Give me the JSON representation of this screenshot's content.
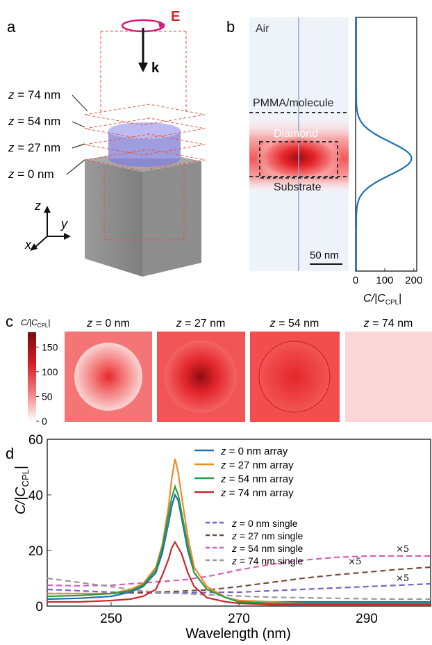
{
  "panel_labels": {
    "a": "a",
    "b": "b",
    "c": "c",
    "d": "d"
  },
  "panel_a": {
    "field_label": "E",
    "wave_label": "k",
    "planes": [
      {
        "prefix": "z",
        "text": " = 74 nm"
      },
      {
        "prefix": "z",
        "text": " = 54 nm"
      },
      {
        "prefix": "z",
        "text": " = 27 nm"
      },
      {
        "prefix": "z",
        "text": " = 0 nm"
      }
    ],
    "axes": {
      "z": "z",
      "y": "y",
      "x": "x"
    }
  },
  "panel_b": {
    "regions": {
      "air": "Air",
      "pmma": "PMMA/molecule",
      "diamond": "Diamond",
      "substrate": "Substrate"
    },
    "scalebar": "50 nm",
    "profile_axis_label": "C/|C",
    "profile_axis_sub": "CPL",
    "profile_axis_end": "|",
    "profile_ticks": [
      "0",
      "100",
      "200"
    ],
    "profile_xlim": [
      0,
      210
    ],
    "profile_peak": 190
  },
  "panel_c": {
    "colorbar_title": "C/|C",
    "colorbar_sub": "CPL",
    "colorbar_end": "|",
    "colorbar_ticks": [
      "150",
      "100",
      "50",
      "0"
    ],
    "maps": [
      {
        "prefix": "z",
        "text": " = 0 nm"
      },
      {
        "prefix": "z",
        "text": " = 27 nm"
      },
      {
        "prefix": "z",
        "text": " = 54 nm"
      },
      {
        "prefix": "z",
        "text": " = 74 nm"
      }
    ]
  },
  "chart_data": {
    "type": "line",
    "xlabel": "Wavelength (nm)",
    "ylabel": "C/|C",
    "ylabel_sub": "CPL",
    "ylabel_end": "|",
    "xlim": [
      240,
      300
    ],
    "ylim": [
      0,
      60
    ],
    "xticks": [
      250,
      270,
      290
    ],
    "yticks": [
      0,
      20,
      40,
      60
    ],
    "x": [
      240,
      245,
      250,
      253,
      255,
      257,
      258,
      259,
      259.5,
      260,
      260.5,
      261,
      262,
      263,
      265,
      268,
      270,
      275,
      280,
      285,
      290,
      295,
      300
    ],
    "series": [
      {
        "name": "z = 0 nm array",
        "color": "#1f6fb4",
        "style": "solid",
        "values": [
          2.5,
          2.8,
          3.5,
          5,
          7,
          12,
          19,
          30,
          36,
          40,
          38,
          32,
          20,
          12,
          6,
          3,
          2,
          1.5,
          1.5,
          1.5,
          1.5,
          1.5,
          1.5
        ]
      },
      {
        "name": "z = 27 nm array",
        "color": "#f08a24",
        "style": "solid",
        "values": [
          4.5,
          4.5,
          4.5,
          6,
          8,
          14,
          22,
          36,
          46,
          53,
          48,
          40,
          25,
          14,
          7,
          3,
          2,
          1.5,
          1,
          1,
          1,
          1,
          1
        ]
      },
      {
        "name": "z = 54 nm array",
        "color": "#2a9b45",
        "style": "solid",
        "values": [
          3.5,
          3.8,
          4.5,
          5.5,
          7.5,
          13,
          21,
          33,
          39,
          43,
          40,
          34,
          22,
          12,
          6,
          3,
          1.5,
          1,
          1,
          1,
          1,
          1,
          1
        ]
      },
      {
        "name": "z = 74 nm array",
        "color": "#c8282f",
        "style": "solid",
        "values": [
          1.5,
          1.5,
          2,
          2.5,
          3.5,
          6,
          11,
          17,
          21,
          23,
          21,
          19,
          12,
          7,
          3,
          1.5,
          1,
          0.5,
          0.5,
          0.5,
          0.5,
          0.5,
          0.5
        ]
      },
      {
        "name": "z = 0 nm single",
        "color": "#7b5fc6",
        "style": "dashed",
        "values": [
          6,
          5.5,
          5,
          4.8,
          4.7,
          4.7,
          4.7,
          4.7,
          4.7,
          4.8,
          4.8,
          4.8,
          4.8,
          4.8,
          4.9,
          5,
          5,
          5.5,
          6,
          6.5,
          7,
          7.5,
          8
        ]
      },
      {
        "name": "z = 27 nm single",
        "color": "#7a4a36",
        "style": "dashed",
        "values": [
          4.5,
          4.5,
          4.5,
          4.8,
          5,
          5.1,
          5.2,
          5.2,
          5.3,
          5.3,
          5.3,
          5.4,
          5.5,
          5.6,
          5.8,
          6.5,
          7,
          8.5,
          10,
          11.2,
          12.2,
          13.2,
          14
        ]
      },
      {
        "name": "z = 54 nm single",
        "color": "#d65db8",
        "style": "dashed",
        "values": [
          7.5,
          7.3,
          7.5,
          8,
          8.3,
          8.7,
          8.8,
          9,
          9.1,
          9.2,
          9.3,
          9.4,
          9.6,
          10,
          10.6,
          12,
          13,
          15,
          16.5,
          17.5,
          18,
          18,
          18
        ]
      },
      {
        "name": "z = 74 nm single",
        "color": "#9a9a9a",
        "style": "dashed",
        "values": [
          10,
          8.5,
          7,
          6,
          5.5,
          5,
          4.9,
          4.8,
          4.7,
          4.6,
          4.6,
          4.5,
          4.4,
          4.3,
          4.1,
          3.8,
          3.6,
          3.2,
          3,
          2.8,
          2.6,
          2.5,
          2.5
        ]
      }
    ],
    "annotations": [
      "×5",
      "×5",
      "×5"
    ]
  }
}
